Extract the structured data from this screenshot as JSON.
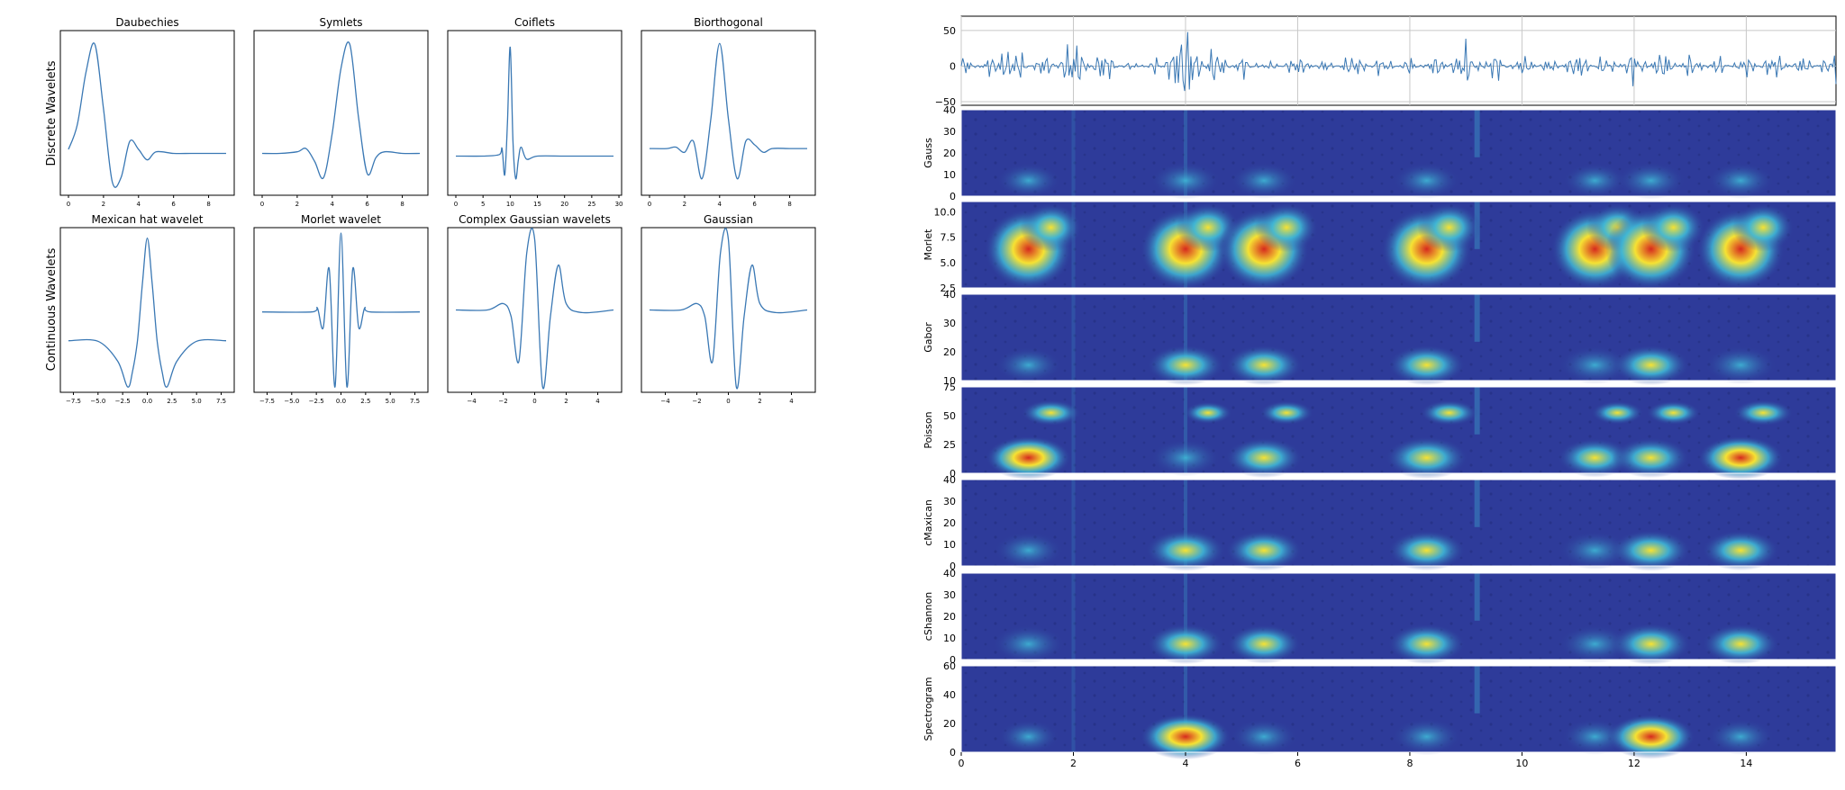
{
  "colors": {
    "line": "#3a78b4",
    "axis": "#000000",
    "grid": "#c8c8c8",
    "heat_low": "#2e3b9a",
    "heat_mid": "#3fb7d6",
    "heat_high": "#f6e233",
    "heat_peak": "#d62a1e"
  },
  "row_labels": {
    "discrete": "Discrete Wavelets",
    "continuous": "Continuous Wavelets"
  },
  "chart_data": [
    {
      "type": "line",
      "title": "Daubechies",
      "x": [
        0,
        0.5,
        1,
        1.5,
        2,
        2.5,
        3,
        3.5,
        4,
        4.5,
        5,
        6,
        7,
        8,
        9
      ],
      "y": [
        0.05,
        0.35,
        1.0,
        1.35,
        0.55,
        -0.35,
        -0.3,
        0.15,
        0.05,
        -0.08,
        0.02,
        0,
        0,
        0,
        0
      ],
      "xticks": [
        "0",
        "2",
        "4",
        "6",
        "8"
      ],
      "xlim": [
        0,
        9
      ],
      "ylim": [
        -0.45,
        1.45
      ]
    },
    {
      "type": "line",
      "title": "Symlets",
      "x": [
        0,
        1,
        2,
        2.5,
        3,
        3.5,
        4,
        4.5,
        5,
        5.5,
        6,
        6.5,
        7,
        8,
        9
      ],
      "y": [
        0,
        0,
        0.02,
        0.06,
        -0.1,
        -0.3,
        0.25,
        1.05,
        1.35,
        0.45,
        -0.25,
        -0.05,
        0.02,
        0,
        0
      ],
      "xticks": [
        "0",
        "2",
        "4",
        "6",
        "8"
      ],
      "xlim": [
        0,
        9
      ],
      "ylim": [
        -0.45,
        1.45
      ]
    },
    {
      "type": "line",
      "title": "Coiflets",
      "x": [
        0,
        5,
        8,
        8.5,
        9,
        9.5,
        10,
        10.5,
        11,
        11.5,
        12,
        13,
        15,
        20,
        25,
        29
      ],
      "y": [
        0,
        0,
        0.02,
        0.1,
        -0.25,
        0.45,
        1.45,
        0.2,
        -0.3,
        -0.05,
        0.12,
        -0.04,
        0,
        0,
        0,
        0
      ],
      "xticks": [
        "0",
        "5",
        "10",
        "15",
        "20",
        "25",
        "30"
      ],
      "xlim": [
        0,
        29
      ],
      "ylim": [
        -0.45,
        1.6
      ]
    },
    {
      "type": "line",
      "title": "Biorthogonal",
      "x": [
        0,
        1,
        1.5,
        2,
        2.5,
        3,
        3.5,
        4,
        4.5,
        5,
        5.5,
        6,
        6.5,
        7,
        8,
        9
      ],
      "y": [
        0,
        0,
        0.02,
        -0.05,
        0.1,
        -0.4,
        0.4,
        1.4,
        0.4,
        -0.4,
        0.1,
        0.05,
        -0.05,
        0,
        0,
        0
      ],
      "xticks": [
        "0",
        "2",
        "4",
        "6",
        "8"
      ],
      "xlim": [
        0,
        9
      ],
      "ylim": [
        -0.55,
        1.5
      ]
    },
    {
      "type": "line",
      "title": "Mexican hat wavelet",
      "x": [
        -8,
        -5,
        -3,
        -2,
        -1.5,
        -1,
        -0.5,
        0,
        0.5,
        1,
        1.5,
        2,
        3,
        5,
        8
      ],
      "y": [
        0,
        -0.005,
        -0.2,
        -0.45,
        -0.3,
        0.0,
        0.55,
        1.0,
        0.55,
        0.0,
        -0.3,
        -0.45,
        -0.2,
        -0.005,
        0
      ],
      "xticks": [
        "−7.5",
        "−5.0",
        "−2.5",
        "0.0",
        "2.5",
        "5.0",
        "7.5"
      ],
      "xlim": [
        -8,
        8
      ],
      "ylim": [
        -0.45,
        1.05
      ]
    },
    {
      "type": "line",
      "title": "Morlet wavelet",
      "x": [
        -8,
        -3,
        -2.4,
        -1.8,
        -1.2,
        -0.6,
        0,
        0.6,
        1.2,
        1.8,
        2.4,
        3,
        8
      ],
      "y": [
        0,
        0,
        0.05,
        -0.2,
        0.55,
        -0.95,
        1.0,
        -0.95,
        0.55,
        -0.2,
        0.05,
        0,
        0
      ],
      "xticks": [
        "−7.5",
        "−5.0",
        "−2.5",
        "0.0",
        "2.5",
        "5.0",
        "7.5"
      ],
      "xlim": [
        -8,
        8
      ],
      "ylim": [
        -0.95,
        1.0
      ]
    },
    {
      "type": "line",
      "title": "Complex Gaussian wavelets",
      "x": [
        -5,
        -3,
        -2,
        -1.5,
        -1,
        -0.5,
        0,
        0.5,
        1,
        1.5,
        2,
        3,
        5
      ],
      "y": [
        0,
        0,
        0.05,
        -0.05,
        -0.4,
        0.45,
        0.55,
        -0.6,
        -0.05,
        0.35,
        0.05,
        -0.02,
        0
      ],
      "xticks": [
        "−4",
        "−2",
        "0",
        "2",
        "4"
      ],
      "xlim": [
        -5,
        5
      ],
      "ylim": [
        -0.6,
        0.6
      ]
    },
    {
      "type": "line",
      "title": "Gaussian",
      "x": [
        -5,
        -3,
        -2,
        -1.5,
        -1,
        -0.5,
        0,
        0.5,
        1,
        1.5,
        2,
        3,
        5
      ],
      "y": [
        0,
        0,
        0.05,
        -0.05,
        -0.4,
        0.45,
        0.55,
        -0.6,
        -0.05,
        0.35,
        0.05,
        -0.02,
        0
      ],
      "xticks": [
        "−4",
        "−2",
        "0",
        "2",
        "4"
      ],
      "xlim": [
        -5,
        5
      ],
      "ylim": [
        -0.6,
        0.6
      ]
    },
    {
      "type": "line",
      "title": "",
      "signal_description": "noisy time series",
      "x": [
        0,
        0.5,
        1,
        1.5,
        2,
        2.5,
        3,
        3.5,
        4,
        4.5,
        5,
        5.5,
        6,
        6.5,
        7,
        7.5,
        8,
        8.5,
        9,
        9.5,
        10,
        10.5,
        11,
        11.5,
        12,
        12.5,
        13,
        13.5,
        14,
        14.5,
        15,
        15.5
      ],
      "y": [
        -20,
        15,
        28,
        -25,
        48,
        -30,
        10,
        -15,
        70,
        -35,
        20,
        -10,
        18,
        -12,
        22,
        -18,
        15,
        -20,
        38,
        -28,
        20,
        -15,
        25,
        -22,
        30,
        -28,
        22,
        -18,
        20,
        -25,
        18,
        -20
      ],
      "yticks": [
        "50",
        "0",
        "−50"
      ],
      "ylim": [
        -55,
        70
      ],
      "xlim": [
        0,
        15.6
      ],
      "grid": true
    },
    {
      "type": "heatmap",
      "ylabel": "Gauss",
      "yticks": [
        "0",
        "10",
        "20",
        "30",
        "40"
      ],
      "hotspots_x": [
        1.2,
        4.0,
        5.4,
        8.3,
        11.3,
        12.3,
        13.9
      ],
      "intensity": [
        0.45,
        0.55,
        0.5,
        0.5,
        0.45,
        0.55,
        0.5
      ]
    },
    {
      "type": "heatmap",
      "ylabel": "Morlet",
      "yticks": [
        "2.5",
        "5.0",
        "7.5",
        "10.0"
      ],
      "hotspots_x": [
        1.2,
        4.0,
        5.4,
        8.3,
        11.3,
        12.3,
        13.9
      ],
      "intensity": [
        0.9,
        0.95,
        0.95,
        0.95,
        0.9,
        0.95,
        0.9
      ]
    },
    {
      "type": "heatmap",
      "ylabel": "Gabor",
      "yticks": [
        "10",
        "20",
        "30",
        "40"
      ],
      "hotspots_x": [
        1.2,
        4.0,
        5.4,
        8.3,
        11.3,
        12.3,
        13.9
      ],
      "intensity": [
        0.5,
        0.7,
        0.7,
        0.7,
        0.6,
        0.7,
        0.6
      ]
    },
    {
      "type": "heatmap",
      "ylabel": "Poisson",
      "yticks": [
        "0",
        "25",
        "50",
        "75"
      ],
      "hotspots_x": [
        1.2,
        4.0,
        5.4,
        8.3,
        11.3,
        12.3,
        13.9
      ],
      "intensity": [
        0.85,
        0.55,
        0.7,
        0.8,
        0.65,
        0.7,
        0.85
      ]
    },
    {
      "type": "heatmap",
      "ylabel": "cMaxican",
      "yticks": [
        "0",
        "10",
        "20",
        "30",
        "40"
      ],
      "hotspots_x": [
        1.2,
        4.0,
        5.4,
        8.3,
        11.3,
        12.3,
        13.9
      ],
      "intensity": [
        0.55,
        0.75,
        0.7,
        0.7,
        0.6,
        0.75,
        0.7
      ]
    },
    {
      "type": "heatmap",
      "ylabel": "cShannon",
      "yticks": [
        "0",
        "10",
        "20",
        "30",
        "40"
      ],
      "hotspots_x": [
        1.2,
        4.0,
        5.4,
        8.3,
        11.3,
        12.3,
        13.9
      ],
      "intensity": [
        0.6,
        0.7,
        0.65,
        0.7,
        0.6,
        0.75,
        0.7
      ]
    },
    {
      "type": "heatmap",
      "ylabel": "Spectrogram",
      "yticks": [
        "0",
        "20",
        "40",
        "60"
      ],
      "xticks": [
        "0",
        "2",
        "4",
        "6",
        "8",
        "10",
        "12",
        "14"
      ],
      "hotspots_x": [
        1.2,
        4.0,
        5.4,
        8.3,
        11.3,
        12.3,
        13.9
      ],
      "intensity": [
        0.4,
        0.95,
        0.5,
        0.55,
        0.5,
        0.9,
        0.5
      ]
    }
  ]
}
